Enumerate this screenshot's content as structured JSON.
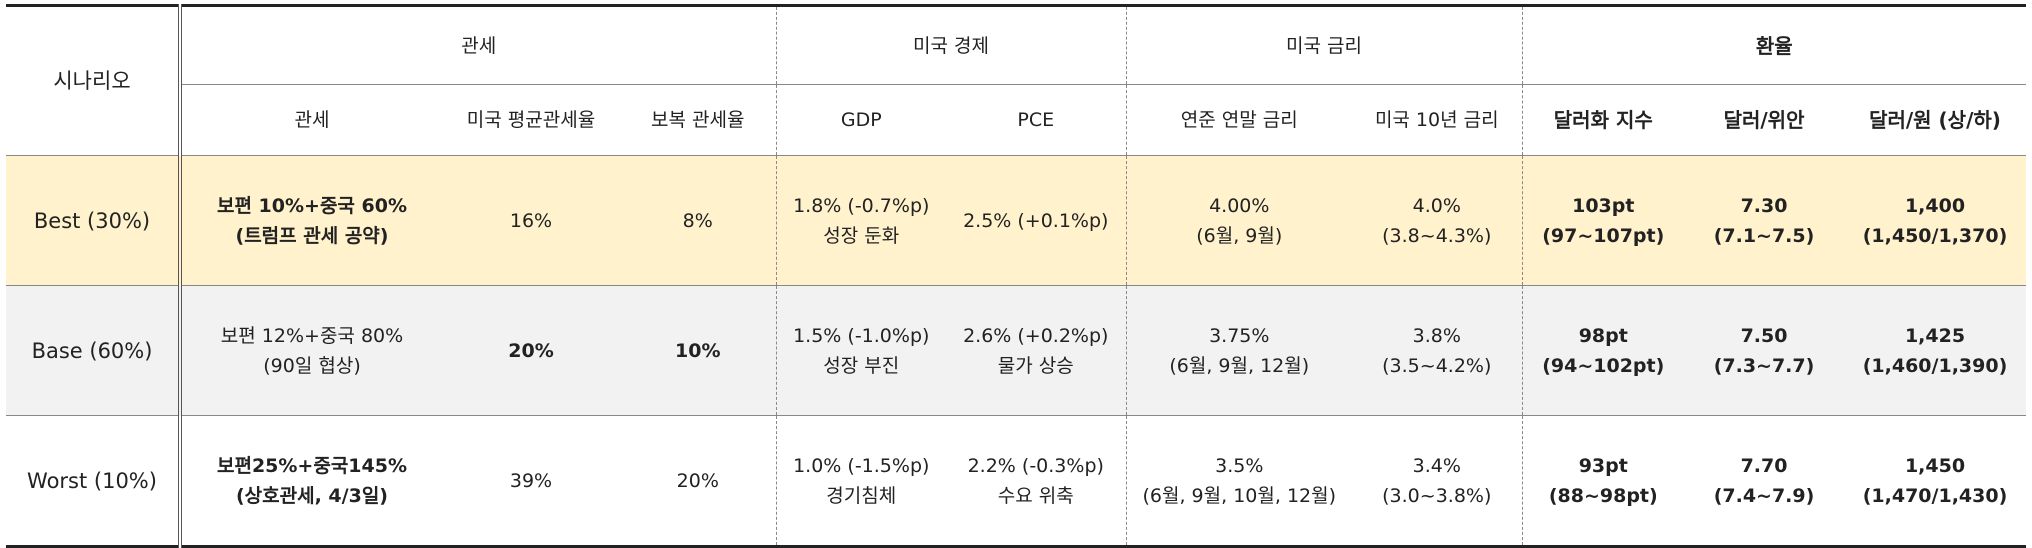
{
  "header": {
    "scenario": "시나리오",
    "groups": {
      "tariff": "관세",
      "us_economy": "미국 경제",
      "us_rate": "미국 금리",
      "fx": "환율"
    },
    "columns": {
      "tariff": "관세",
      "avg_tariff": "미국 평균관세율",
      "retaliatory": "보복 관세율",
      "gdp": "GDP",
      "pce": "PCE",
      "fed_rate": "연준 연말 금리",
      "us10y": "미국 10년 금리",
      "dxy": "달러화 지수",
      "usdcny": "달러/위안",
      "usdkrw": "달러/원 (상/하)"
    }
  },
  "rows": [
    {
      "scenario": "Best (30%)",
      "tariff": [
        "보편 10%+중국 60%",
        "(트럼프 관세 공약)"
      ],
      "avg_tariff": "16%",
      "retaliatory": "8%",
      "gdp": [
        "1.8% (-0.7%p)",
        "성장 둔화"
      ],
      "pce": "2.5% (+0.1%p)",
      "fed_rate": [
        "4.00%",
        "(6월, 9월)"
      ],
      "us10y": [
        "4.0%",
        "(3.8~4.3%)"
      ],
      "dxy": [
        "103pt",
        "(97~107pt)"
      ],
      "usdcny": [
        "7.30",
        "(7.1~7.5)"
      ],
      "usdkrw": [
        "1,400",
        "(1,450/1,370)"
      ]
    },
    {
      "scenario": "Base (60%)",
      "tariff": [
        "보편 12%+중국 80%",
        "(90일 협상)"
      ],
      "avg_tariff": "20%",
      "retaliatory": "10%",
      "gdp": [
        "1.5% (-1.0%p)",
        "성장 부진"
      ],
      "pce": [
        "2.6% (+0.2%p)",
        "물가 상승"
      ],
      "fed_rate": [
        "3.75%",
        "(6월, 9월, 12월)"
      ],
      "us10y": [
        "3.8%",
        "(3.5~4.2%)"
      ],
      "dxy": [
        "98pt",
        "(94~102pt)"
      ],
      "usdcny": [
        "7.50",
        "(7.3~7.7)"
      ],
      "usdkrw": [
        "1,425",
        "(1,460/1,390)"
      ]
    },
    {
      "scenario": "Worst (10%)",
      "tariff": [
        "보편25%+중국145%",
        "(상호관세, 4/3일)"
      ],
      "avg_tariff": "39%",
      "retaliatory": "20%",
      "gdp": [
        "1.0% (-1.5%p)",
        "경기침체"
      ],
      "pce": [
        "2.2% (-0.3%p)",
        "수요 위축"
      ],
      "fed_rate": [
        "3.5%",
        "(6월, 9월, 10월, 12월)"
      ],
      "us10y": [
        "3.4%",
        "(3.0~3.8%)"
      ],
      "dxy": [
        "93pt",
        "(88~98pt)"
      ],
      "usdcny": [
        "7.70",
        "(7.4~7.9)"
      ],
      "usdkrw": [
        "1,450",
        "(1,470/1,430)"
      ]
    }
  ]
}
